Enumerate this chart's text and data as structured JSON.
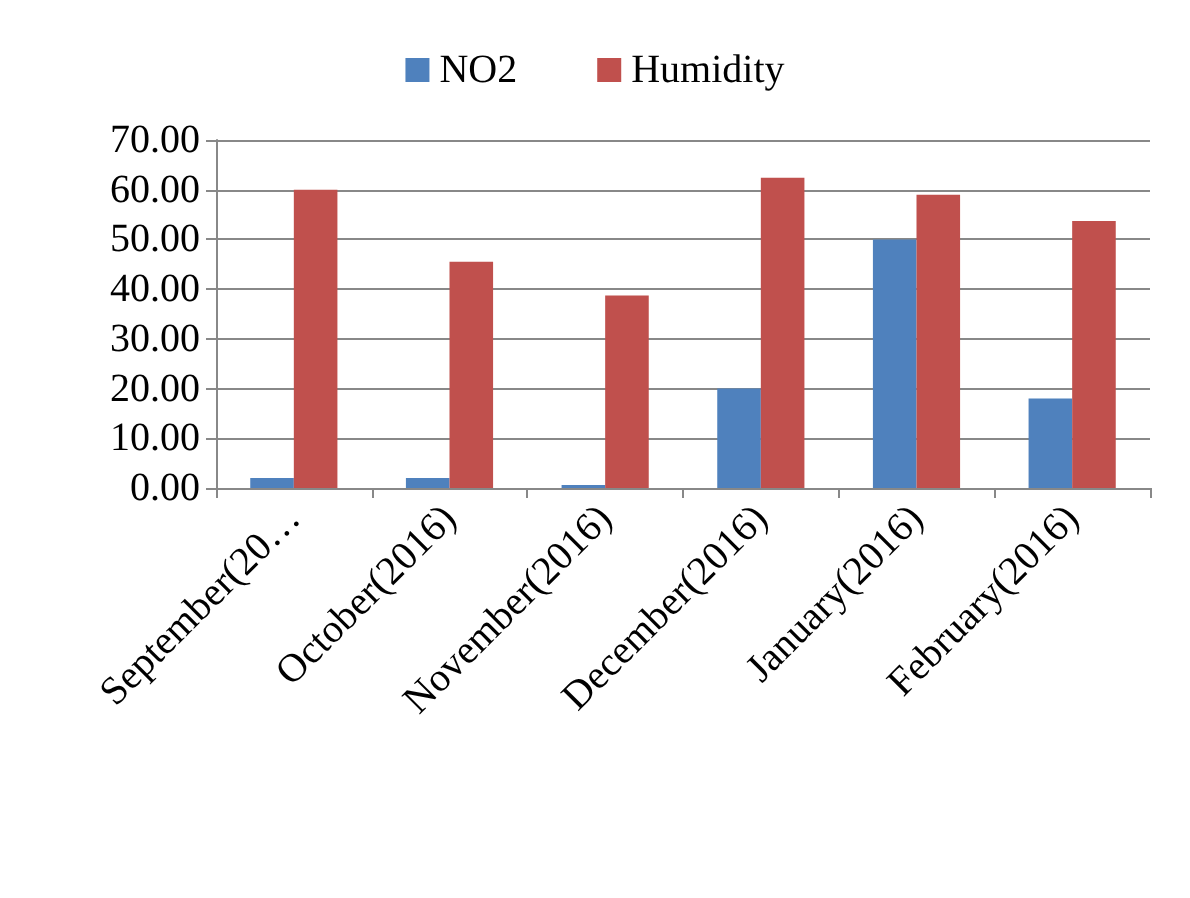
{
  "chart_data": {
    "type": "bar",
    "categories": [
      "September(20…",
      "October(2016)",
      "November(2016)",
      "December(2016)",
      "January(2016)",
      "February(2016)"
    ],
    "series": [
      {
        "name": "NO2",
        "color": "#4f81bd",
        "values": [
          2,
          2,
          0.6,
          20,
          50,
          18
        ]
      },
      {
        "name": "Humidity",
        "color": "#c0504d",
        "values": [
          60,
          45.5,
          38.7,
          62.4,
          59,
          53.7
        ]
      }
    ],
    "ylim": [
      0,
      70
    ],
    "yticks": [
      {
        "value": 0,
        "label": "0.00"
      },
      {
        "value": 10,
        "label": "10.00"
      },
      {
        "value": 20,
        "label": "20.00"
      },
      {
        "value": 30,
        "label": "30.00"
      },
      {
        "value": 40,
        "label": "40.00"
      },
      {
        "value": 50,
        "label": "50.00"
      },
      {
        "value": 60,
        "label": "60.00"
      },
      {
        "value": 70,
        "label": "70.00"
      }
    ],
    "grid": "y",
    "legend": "top"
  }
}
